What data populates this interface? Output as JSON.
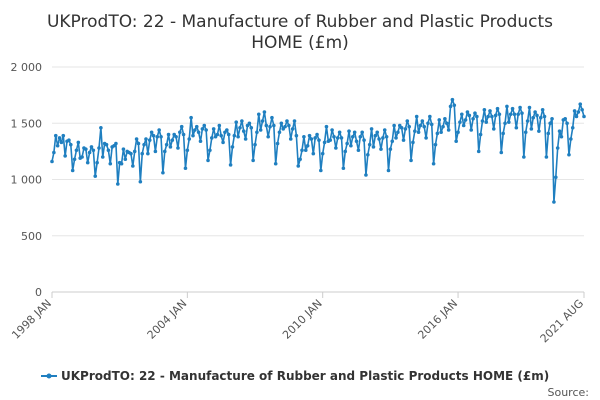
{
  "chart_data": {
    "type": "line",
    "title": "UKProdTO: 22 - Manufacture of Rubber and Plastic Products HOME (£m)",
    "title_lines": [
      "UKProdTO: 22 - Manufacture of Rubber and Plastic Products",
      "HOME (£m)"
    ],
    "xlabel": "",
    "ylabel": "",
    "ylim": [
      0,
      2000
    ],
    "y_ticks": [
      0,
      500,
      1000,
      1500,
      2000
    ],
    "y_tick_labels": [
      "0",
      "500",
      "1 000",
      "1 500",
      "2 000"
    ],
    "x_range": [
      "1998-01",
      "2021-08"
    ],
    "x_ticks": [
      "1998-01",
      "2004-01",
      "2010-01",
      "2016-01",
      "2021-08"
    ],
    "x_tick_labels": [
      "1998 JAN",
      "2004 JAN",
      "2010 JAN",
      "2016 JAN",
      "2021 AUG"
    ],
    "grid": true,
    "legend_position": "bottom",
    "series": [
      {
        "name": "UKProdTO: 22 - Manufacture of Rubber and Plastic Products HOME (£m)",
        "color": "#1f7fc0",
        "points": [
          [
            "1998-01",
            1160
          ],
          [
            "1998-02",
            1240
          ],
          [
            "1998-03",
            1390
          ],
          [
            "1998-04",
            1300
          ],
          [
            "1998-05",
            1370
          ],
          [
            "1998-06",
            1330
          ],
          [
            "1998-07",
            1390
          ],
          [
            "1998-08",
            1210
          ],
          [
            "1998-09",
            1340
          ],
          [
            "1998-10",
            1350
          ],
          [
            "1998-11",
            1310
          ],
          [
            "1998-12",
            1080
          ],
          [
            "1999-01",
            1180
          ],
          [
            "1999-02",
            1260
          ],
          [
            "1999-03",
            1330
          ],
          [
            "1999-04",
            1190
          ],
          [
            "1999-05",
            1200
          ],
          [
            "1999-06",
            1280
          ],
          [
            "1999-07",
            1270
          ],
          [
            "1999-08",
            1150
          ],
          [
            "1999-09",
            1240
          ],
          [
            "1999-10",
            1290
          ],
          [
            "1999-11",
            1260
          ],
          [
            "1999-12",
            1030
          ],
          [
            "2000-01",
            1150
          ],
          [
            "2000-02",
            1280
          ],
          [
            "2000-03",
            1460
          ],
          [
            "2000-04",
            1200
          ],
          [
            "2000-05",
            1320
          ],
          [
            "2000-06",
            1310
          ],
          [
            "2000-07",
            1260
          ],
          [
            "2000-08",
            1140
          ],
          [
            "2000-09",
            1290
          ],
          [
            "2000-10",
            1300
          ],
          [
            "2000-11",
            1320
          ],
          [
            "2000-12",
            960
          ],
          [
            "2001-01",
            1150
          ],
          [
            "2001-02",
            1140
          ],
          [
            "2001-03",
            1270
          ],
          [
            "2001-04",
            1180
          ],
          [
            "2001-05",
            1250
          ],
          [
            "2001-06",
            1240
          ],
          [
            "2001-07",
            1230
          ],
          [
            "2001-08",
            1120
          ],
          [
            "2001-09",
            1250
          ],
          [
            "2001-10",
            1360
          ],
          [
            "2001-11",
            1320
          ],
          [
            "2001-12",
            980
          ],
          [
            "2002-01",
            1230
          ],
          [
            "2002-02",
            1310
          ],
          [
            "2002-03",
            1360
          ],
          [
            "2002-04",
            1230
          ],
          [
            "2002-05",
            1350
          ],
          [
            "2002-06",
            1420
          ],
          [
            "2002-07",
            1390
          ],
          [
            "2002-08",
            1250
          ],
          [
            "2002-09",
            1380
          ],
          [
            "2002-10",
            1440
          ],
          [
            "2002-11",
            1380
          ],
          [
            "2002-12",
            1060
          ],
          [
            "2003-01",
            1250
          ],
          [
            "2003-02",
            1310
          ],
          [
            "2003-03",
            1400
          ],
          [
            "2003-04",
            1290
          ],
          [
            "2003-05",
            1350
          ],
          [
            "2003-06",
            1400
          ],
          [
            "2003-07",
            1380
          ],
          [
            "2003-08",
            1280
          ],
          [
            "2003-09",
            1420
          ],
          [
            "2003-10",
            1470
          ],
          [
            "2003-11",
            1400
          ],
          [
            "2003-12",
            1100
          ],
          [
            "2004-01",
            1260
          ],
          [
            "2004-02",
            1360
          ],
          [
            "2004-03",
            1550
          ],
          [
            "2004-04",
            1390
          ],
          [
            "2004-05",
            1440
          ],
          [
            "2004-06",
            1470
          ],
          [
            "2004-07",
            1420
          ],
          [
            "2004-08",
            1340
          ],
          [
            "2004-09",
            1450
          ],
          [
            "2004-10",
            1480
          ],
          [
            "2004-11",
            1440
          ],
          [
            "2004-12",
            1170
          ],
          [
            "2005-01",
            1260
          ],
          [
            "2005-02",
            1370
          ],
          [
            "2005-03",
            1450
          ],
          [
            "2005-04",
            1380
          ],
          [
            "2005-05",
            1400
          ],
          [
            "2005-06",
            1480
          ],
          [
            "2005-07",
            1390
          ],
          [
            "2005-08",
            1330
          ],
          [
            "2005-09",
            1420
          ],
          [
            "2005-10",
            1440
          ],
          [
            "2005-11",
            1400
          ],
          [
            "2005-12",
            1130
          ],
          [
            "2006-01",
            1290
          ],
          [
            "2006-02",
            1390
          ],
          [
            "2006-03",
            1510
          ],
          [
            "2006-04",
            1380
          ],
          [
            "2006-05",
            1460
          ],
          [
            "2006-06",
            1520
          ],
          [
            "2006-07",
            1430
          ],
          [
            "2006-08",
            1360
          ],
          [
            "2006-09",
            1480
          ],
          [
            "2006-10",
            1500
          ],
          [
            "2006-11",
            1460
          ],
          [
            "2006-12",
            1170
          ],
          [
            "2007-01",
            1310
          ],
          [
            "2007-02",
            1420
          ],
          [
            "2007-03",
            1580
          ],
          [
            "2007-04",
            1440
          ],
          [
            "2007-05",
            1520
          ],
          [
            "2007-06",
            1600
          ],
          [
            "2007-07",
            1480
          ],
          [
            "2007-08",
            1380
          ],
          [
            "2007-09",
            1470
          ],
          [
            "2007-10",
            1550
          ],
          [
            "2007-11",
            1480
          ],
          [
            "2007-12",
            1140
          ],
          [
            "2008-01",
            1320
          ],
          [
            "2008-02",
            1420
          ],
          [
            "2008-03",
            1500
          ],
          [
            "2008-04",
            1450
          ],
          [
            "2008-05",
            1470
          ],
          [
            "2008-06",
            1520
          ],
          [
            "2008-07",
            1480
          ],
          [
            "2008-08",
            1360
          ],
          [
            "2008-09",
            1450
          ],
          [
            "2008-10",
            1520
          ],
          [
            "2008-11",
            1390
          ],
          [
            "2008-12",
            1120
          ],
          [
            "2009-01",
            1180
          ],
          [
            "2009-02",
            1260
          ],
          [
            "2009-03",
            1380
          ],
          [
            "2009-04",
            1260
          ],
          [
            "2009-05",
            1300
          ],
          [
            "2009-06",
            1390
          ],
          [
            "2009-07",
            1360
          ],
          [
            "2009-08",
            1230
          ],
          [
            "2009-09",
            1370
          ],
          [
            "2009-10",
            1400
          ],
          [
            "2009-11",
            1350
          ],
          [
            "2009-12",
            1080
          ],
          [
            "2010-01",
            1230
          ],
          [
            "2010-02",
            1330
          ],
          [
            "2010-03",
            1470
          ],
          [
            "2010-04",
            1340
          ],
          [
            "2010-05",
            1350
          ],
          [
            "2010-06",
            1440
          ],
          [
            "2010-07",
            1380
          ],
          [
            "2010-08",
            1280
          ],
          [
            "2010-09",
            1370
          ],
          [
            "2010-10",
            1420
          ],
          [
            "2010-11",
            1370
          ],
          [
            "2010-12",
            1100
          ],
          [
            "2011-01",
            1250
          ],
          [
            "2011-02",
            1320
          ],
          [
            "2011-03",
            1430
          ],
          [
            "2011-04",
            1300
          ],
          [
            "2011-05",
            1380
          ],
          [
            "2011-06",
            1420
          ],
          [
            "2011-07",
            1340
          ],
          [
            "2011-08",
            1260
          ],
          [
            "2011-09",
            1380
          ],
          [
            "2011-10",
            1420
          ],
          [
            "2011-11",
            1350
          ],
          [
            "2011-12",
            1040
          ],
          [
            "2012-01",
            1220
          ],
          [
            "2012-02",
            1310
          ],
          [
            "2012-03",
            1450
          ],
          [
            "2012-04",
            1290
          ],
          [
            "2012-05",
            1390
          ],
          [
            "2012-06",
            1420
          ],
          [
            "2012-07",
            1360
          ],
          [
            "2012-08",
            1270
          ],
          [
            "2012-09",
            1370
          ],
          [
            "2012-10",
            1440
          ],
          [
            "2012-11",
            1380
          ],
          [
            "2012-12",
            1080
          ],
          [
            "2013-01",
            1270
          ],
          [
            "2013-02",
            1340
          ],
          [
            "2013-03",
            1480
          ],
          [
            "2013-04",
            1370
          ],
          [
            "2013-05",
            1420
          ],
          [
            "2013-06",
            1480
          ],
          [
            "2013-07",
            1460
          ],
          [
            "2013-08",
            1350
          ],
          [
            "2013-09",
            1450
          ],
          [
            "2013-10",
            1520
          ],
          [
            "2013-11",
            1470
          ],
          [
            "2013-12",
            1170
          ],
          [
            "2014-01",
            1330
          ],
          [
            "2014-02",
            1430
          ],
          [
            "2014-03",
            1560
          ],
          [
            "2014-04",
            1420
          ],
          [
            "2014-05",
            1480
          ],
          [
            "2014-06",
            1520
          ],
          [
            "2014-07",
            1470
          ],
          [
            "2014-08",
            1370
          ],
          [
            "2014-09",
            1500
          ],
          [
            "2014-10",
            1560
          ],
          [
            "2014-11",
            1490
          ],
          [
            "2014-12",
            1140
          ],
          [
            "2015-01",
            1310
          ],
          [
            "2015-02",
            1410
          ],
          [
            "2015-03",
            1530
          ],
          [
            "2015-04",
            1420
          ],
          [
            "2015-05",
            1470
          ],
          [
            "2015-06",
            1540
          ],
          [
            "2015-07",
            1500
          ],
          [
            "2015-08",
            1440
          ],
          [
            "2015-09",
            1650
          ],
          [
            "2015-10",
            1710
          ],
          [
            "2015-11",
            1660
          ],
          [
            "2015-12",
            1340
          ],
          [
            "2016-01",
            1420
          ],
          [
            "2016-02",
            1510
          ],
          [
            "2016-03",
            1580
          ],
          [
            "2016-04",
            1480
          ],
          [
            "2016-05",
            1530
          ],
          [
            "2016-06",
            1600
          ],
          [
            "2016-07",
            1570
          ],
          [
            "2016-08",
            1440
          ],
          [
            "2016-09",
            1540
          ],
          [
            "2016-10",
            1590
          ],
          [
            "2016-11",
            1560
          ],
          [
            "2016-12",
            1250
          ],
          [
            "2017-01",
            1400
          ],
          [
            "2017-02",
            1520
          ],
          [
            "2017-03",
            1620
          ],
          [
            "2017-04",
            1510
          ],
          [
            "2017-05",
            1560
          ],
          [
            "2017-06",
            1610
          ],
          [
            "2017-07",
            1560
          ],
          [
            "2017-08",
            1450
          ],
          [
            "2017-09",
            1570
          ],
          [
            "2017-10",
            1630
          ],
          [
            "2017-11",
            1580
          ],
          [
            "2017-12",
            1240
          ],
          [
            "2018-01",
            1410
          ],
          [
            "2018-02",
            1500
          ],
          [
            "2018-03",
            1650
          ],
          [
            "2018-04",
            1510
          ],
          [
            "2018-05",
            1580
          ],
          [
            "2018-06",
            1630
          ],
          [
            "2018-07",
            1580
          ],
          [
            "2018-08",
            1460
          ],
          [
            "2018-09",
            1580
          ],
          [
            "2018-10",
            1640
          ],
          [
            "2018-11",
            1590
          ],
          [
            "2018-12",
            1200
          ],
          [
            "2019-01",
            1420
          ],
          [
            "2019-02",
            1520
          ],
          [
            "2019-03",
            1640
          ],
          [
            "2019-04",
            1450
          ],
          [
            "2019-05",
            1550
          ],
          [
            "2019-06",
            1600
          ],
          [
            "2019-07",
            1570
          ],
          [
            "2019-08",
            1430
          ],
          [
            "2019-09",
            1550
          ],
          [
            "2019-10",
            1620
          ],
          [
            "2019-11",
            1560
          ],
          [
            "2019-12",
            1200
          ],
          [
            "2020-01",
            1410
          ],
          [
            "2020-02",
            1500
          ],
          [
            "2020-03",
            1540
          ],
          [
            "2020-04",
            800
          ],
          [
            "2020-05",
            1020
          ],
          [
            "2020-06",
            1280
          ],
          [
            "2020-07",
            1430
          ],
          [
            "2020-08",
            1380
          ],
          [
            "2020-09",
            1530
          ],
          [
            "2020-10",
            1540
          ],
          [
            "2020-11",
            1500
          ],
          [
            "2020-12",
            1220
          ],
          [
            "2021-01",
            1360
          ],
          [
            "2021-02",
            1460
          ],
          [
            "2021-03",
            1610
          ],
          [
            "2021-04",
            1560
          ],
          [
            "2021-05",
            1600
          ],
          [
            "2021-06",
            1670
          ],
          [
            "2021-07",
            1620
          ],
          [
            "2021-08",
            1560
          ]
        ]
      }
    ]
  },
  "legend": {
    "label": "UKProdTO: 22 - Manufacture of Rubber and Plastic Products HOME (£m)"
  },
  "footer": {
    "source_label": "Source:"
  }
}
